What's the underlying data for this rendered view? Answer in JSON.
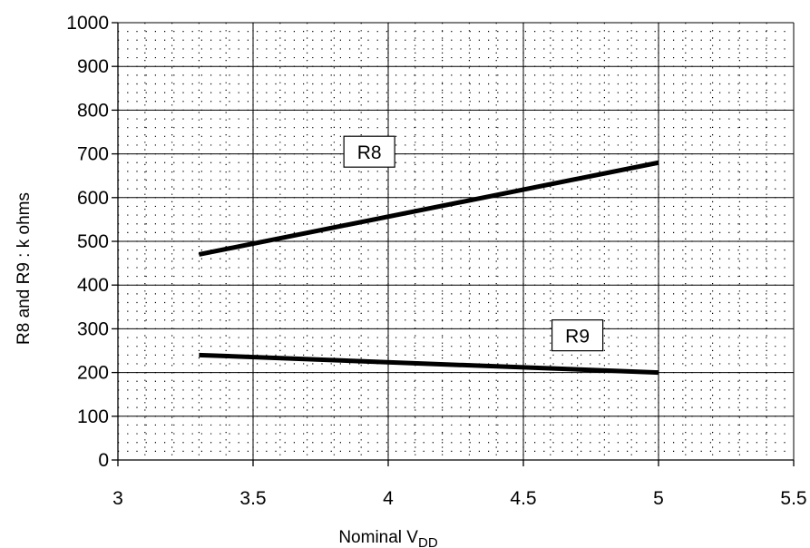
{
  "chart_data": {
    "type": "line",
    "xlabel": "Nominal V",
    "xlabel_subscript": "DD",
    "ylabel": "R8 and R9 : k ohms",
    "xlim": [
      3,
      5.5
    ],
    "ylim": [
      0,
      1000
    ],
    "x_ticks": [
      "3",
      "3.5",
      "4",
      "4.5",
      "5",
      "5.5"
    ],
    "y_ticks": [
      "0",
      "100",
      "200",
      "300",
      "400",
      "500",
      "600",
      "700",
      "800",
      "900",
      "1000"
    ],
    "x_tick_values": [
      3,
      3.5,
      4,
      4.5,
      5,
      5.5
    ],
    "y_tick_values": [
      0,
      100,
      200,
      300,
      400,
      500,
      600,
      700,
      800,
      900,
      1000
    ],
    "grid": true,
    "minor_grid": "dotted",
    "legend": "none",
    "series": [
      {
        "name": "R8",
        "x": [
          3.3,
          5.0
        ],
        "y": [
          470,
          680
        ],
        "color": "#000000"
      },
      {
        "name": "R9",
        "x": [
          3.3,
          5.0
        ],
        "y": [
          240,
          200
        ],
        "color": "#000000"
      }
    ],
    "annotations": [
      {
        "text": "R8",
        "x": 3.93,
        "y": 705
      },
      {
        "text": "R9",
        "x": 4.7,
        "y": 285
      }
    ]
  }
}
